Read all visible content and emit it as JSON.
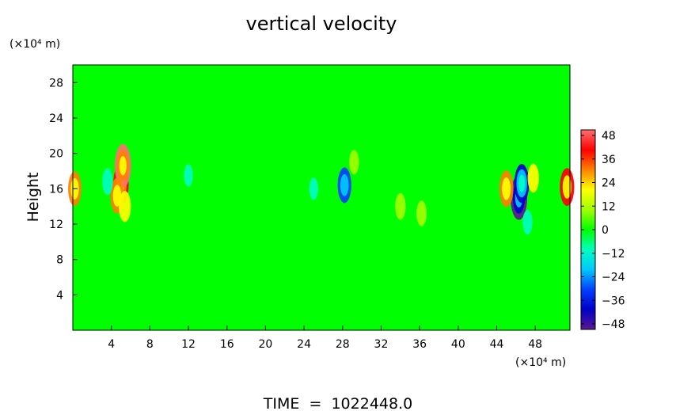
{
  "chart_data": {
    "type": "heatmap",
    "title": "vertical velocity",
    "ylabel": "Height",
    "y_unit": "(×10⁴ m)",
    "x_unit": "(×10⁴ m)",
    "footer": "TIME  =  1022448.0",
    "xlim": [
      0,
      51.6
    ],
    "ylim": [
      0,
      30
    ],
    "x_ticks": [
      "4",
      "8",
      "12",
      "16",
      "20",
      "24",
      "28",
      "32",
      "36",
      "40",
      "44",
      "48"
    ],
    "y_ticks": [
      "4",
      "8",
      "12",
      "16",
      "20",
      "24",
      "28"
    ],
    "colorbar": {
      "range": [
        -48,
        48
      ],
      "ticks": [
        "48",
        "36",
        "24",
        "12",
        "0",
        "−12",
        "−24",
        "−36",
        "−48"
      ],
      "stops": [
        "#5a1890",
        "#0000c8",
        "#0040ff",
        "#00c8ff",
        "#00ffc0",
        "#00ff00",
        "#a0ff00",
        "#ffff00",
        "#ff8000",
        "#ff0000",
        "#ff7070"
      ]
    },
    "background_value": 0,
    "features": [
      {
        "x": 5.0,
        "y": 16.5,
        "value": 40
      },
      {
        "x": 5.2,
        "y": 18.6,
        "value": 44
      },
      {
        "x": 4.6,
        "y": 15.2,
        "value": 30
      },
      {
        "x": 5.4,
        "y": 14.0,
        "value": 22
      },
      {
        "x": 3.6,
        "y": 16.8,
        "value": -14
      },
      {
        "x": 28.2,
        "y": 16.4,
        "value": -30
      },
      {
        "x": 29.2,
        "y": 19.0,
        "value": 10
      },
      {
        "x": 34.0,
        "y": 14.0,
        "value": 14
      },
      {
        "x": 36.2,
        "y": 13.2,
        "value": 12
      },
      {
        "x": 46.3,
        "y": 15.0,
        "value": -46
      },
      {
        "x": 46.6,
        "y": 16.6,
        "value": -36
      },
      {
        "x": 45.0,
        "y": 16.0,
        "value": 32
      },
      {
        "x": 47.8,
        "y": 17.2,
        "value": 18
      },
      {
        "x": 51.3,
        "y": 16.2,
        "value": 34
      },
      {
        "x": 0.2,
        "y": 16.0,
        "value": 28
      },
      {
        "x": 47.2,
        "y": 12.2,
        "value": -10
      },
      {
        "x": 12.0,
        "y": 17.5,
        "value": -6
      },
      {
        "x": 25.0,
        "y": 16.0,
        "value": -6
      }
    ]
  }
}
